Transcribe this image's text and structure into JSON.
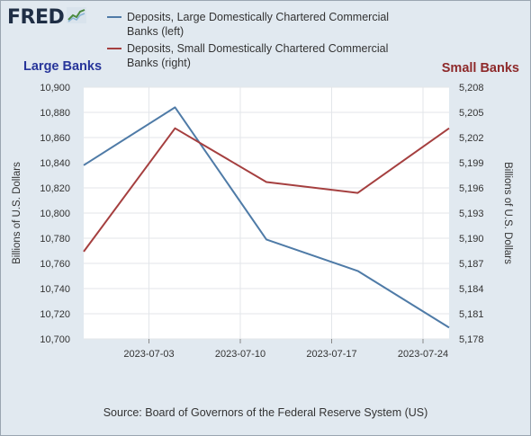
{
  "logo": {
    "text": "FRED",
    "icon": "chart-line-icon"
  },
  "chart_data": {
    "type": "line",
    "x": [
      "2023-06-28",
      "2023-07-05",
      "2023-07-12",
      "2023-07-19",
      "2023-07-26"
    ],
    "xticks": [
      "2023-07-03",
      "2023-07-10",
      "2023-07-17",
      "2023-07-24"
    ],
    "series": [
      {
        "name": "Deposits, Large Domestically Chartered Commercial Banks (left)",
        "axis": "left",
        "color": "#4f7ba7",
        "values": [
          10838,
          10884,
          10779,
          10754,
          10709
        ]
      },
      {
        "name": "Deposits, Small Domestically Chartered Commercial Banks (right)",
        "axis": "right",
        "color": "#a53f3f",
        "values": [
          5188.4,
          5203.1,
          5196.7,
          5195.4,
          5203.1
        ]
      }
    ],
    "y_left": {
      "label": "Billions of U.S. Dollars",
      "title": "Large Banks",
      "range": [
        10700,
        10900
      ],
      "ticks": [
        "10,700",
        "10,720",
        "10,740",
        "10,760",
        "10,780",
        "10,800",
        "10,820",
        "10,840",
        "10,860",
        "10,880",
        "10,900"
      ]
    },
    "y_right": {
      "label": "Billions of U.S. Dollars",
      "title": "Small Banks",
      "range": [
        5178,
        5208
      ],
      "ticks": [
        "5,178",
        "5,181",
        "5,184",
        "5,187",
        "5,190",
        "5,193",
        "5,196",
        "5,199",
        "5,202",
        "5,205",
        "5,208"
      ]
    },
    "grid": true,
    "legend_placement": "top",
    "source": "Source: Board of Governors of the Federal Reserve System (US)"
  },
  "legend": {
    "items": [
      {
        "line1": "Deposits, Large Domestically Chartered Commercial",
        "line2": "Banks (left)",
        "color": "#4f7ba7"
      },
      {
        "line1": "Deposits, Small Domestically Chartered Commercial",
        "line2": "Banks (right)",
        "color": "#a53f3f"
      }
    ]
  }
}
